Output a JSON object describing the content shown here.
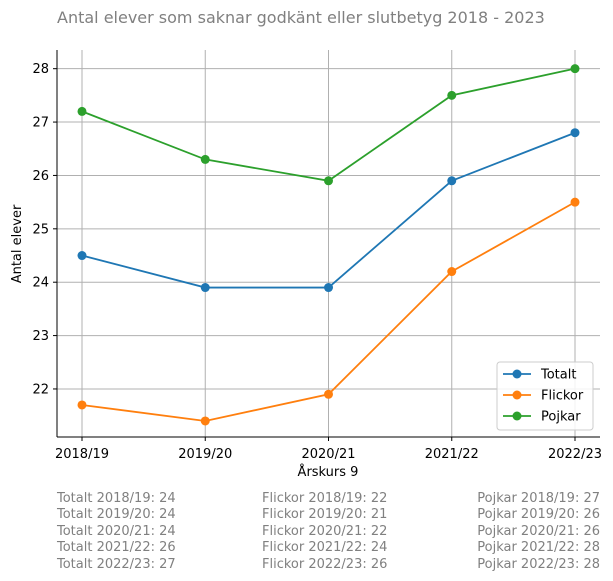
{
  "chart_data": {
    "type": "line",
    "title": "Antal elever som saknar godkänt eller slutbetyg 2018 - 2023",
    "xlabel": "Årskurs 9",
    "ylabel": "Antal elever",
    "categories": [
      "2018/19",
      "2019/20",
      "2020/21",
      "2021/22",
      "2022/23"
    ],
    "ylim": [
      21.1,
      28.35
    ],
    "yticks": [
      22,
      23,
      24,
      25,
      26,
      27,
      28
    ],
    "grid": true,
    "legend_position": "bottom-right",
    "series": [
      {
        "name": "Totalt",
        "color": "#1f77b4",
        "values": [
          24.5,
          23.9,
          23.9,
          25.9,
          26.8
        ]
      },
      {
        "name": "Flickor",
        "color": "#ff7f0e",
        "values": [
          21.7,
          21.4,
          21.9,
          24.2,
          25.5
        ]
      },
      {
        "name": "Pojkar",
        "color": "#2ca02c",
        "values": [
          27.2,
          26.3,
          25.9,
          27.5,
          28.0
        ]
      }
    ]
  },
  "notes": {
    "totalt": [
      "Totalt 2018/19: 24",
      "Totalt 2019/20: 24",
      "Totalt 2020/21: 24",
      "Totalt 2021/22: 26",
      "Totalt 2022/23: 27"
    ],
    "flickor": [
      "Flickor 2018/19: 22",
      "Flickor 2019/20: 21",
      "Flickor 2020/21: 22",
      "Flickor 2021/22: 24",
      "Flickor 2022/23: 26"
    ],
    "pojkar": [
      "Pojkar 2018/19: 27",
      "Pojkar 2019/20: 26",
      "Pojkar 2020/21: 26",
      "Pojkar 2021/22: 28",
      "Pojkar 2022/23: 28"
    ]
  }
}
